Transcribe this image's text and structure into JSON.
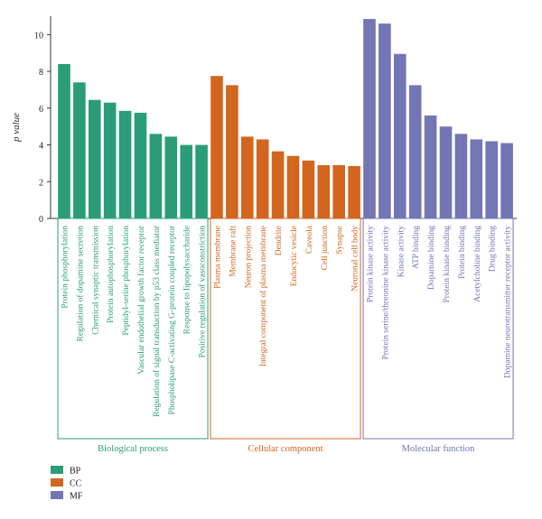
{
  "chart_data": {
    "type": "bar",
    "ylabel": "p value",
    "ylim": [
      0,
      11
    ],
    "yticks": [
      0,
      2,
      4,
      6,
      8,
      10
    ],
    "grid": false,
    "legend_placement": "bottom-left",
    "groups": [
      {
        "key": "BP",
        "name": "Biological process",
        "color": "#2a9d78",
        "categories": [
          "Protein phosphorylation",
          "Regulation of dopamine secretion",
          "Chemical synaptic transmission",
          "Protein autophosphorylation",
          "Peptidyl-serine phosphorylation",
          "Vascular endothelial growth factor receptor",
          "Regulation of signal transduction by p53 class mediator",
          "Phospholipase C-activating G-protein coupled receptor",
          "Response to lipopolysaccharide",
          "Positive regulation of vasoconstriction"
        ],
        "values": [
          8.4,
          7.4,
          6.45,
          6.3,
          5.85,
          5.75,
          4.6,
          4.45,
          4.0,
          4.0
        ]
      },
      {
        "key": "CC",
        "name": "Cellular component",
        "color": "#d2661e",
        "categories": [
          "Plasma membrane",
          "Membrane raft",
          "Neuron projection",
          "Integral component of plasma membrane",
          "Dendrite",
          "Endocytic vesicle",
          "Caveola",
          "Cell junction",
          "Synapse",
          "Neuronal cell body"
        ],
        "values": [
          7.75,
          7.25,
          4.45,
          4.3,
          3.65,
          3.4,
          3.15,
          2.9,
          2.9,
          2.85
        ]
      },
      {
        "key": "MF",
        "name": "Molecular function",
        "color": "#7375b5",
        "categories": [
          "Protein kinase activity",
          "Protein serine/threonine kinase activity",
          "Kinase activity",
          "ATP binding",
          "Dopamine binding",
          "Protein kinase binding",
          "Protein binding",
          "Acetylcholine binding",
          "Drug binding",
          "Dopamine neurotransmitter receptor activity"
        ],
        "values": [
          10.85,
          10.6,
          8.95,
          7.25,
          5.6,
          5.0,
          4.6,
          4.3,
          4.2,
          4.1
        ]
      }
    ],
    "legend": [
      {
        "label": "BP",
        "color": "#2a9d78"
      },
      {
        "label": "CC",
        "color": "#d2661e"
      },
      {
        "label": "MF",
        "color": "#7375b5"
      }
    ]
  }
}
